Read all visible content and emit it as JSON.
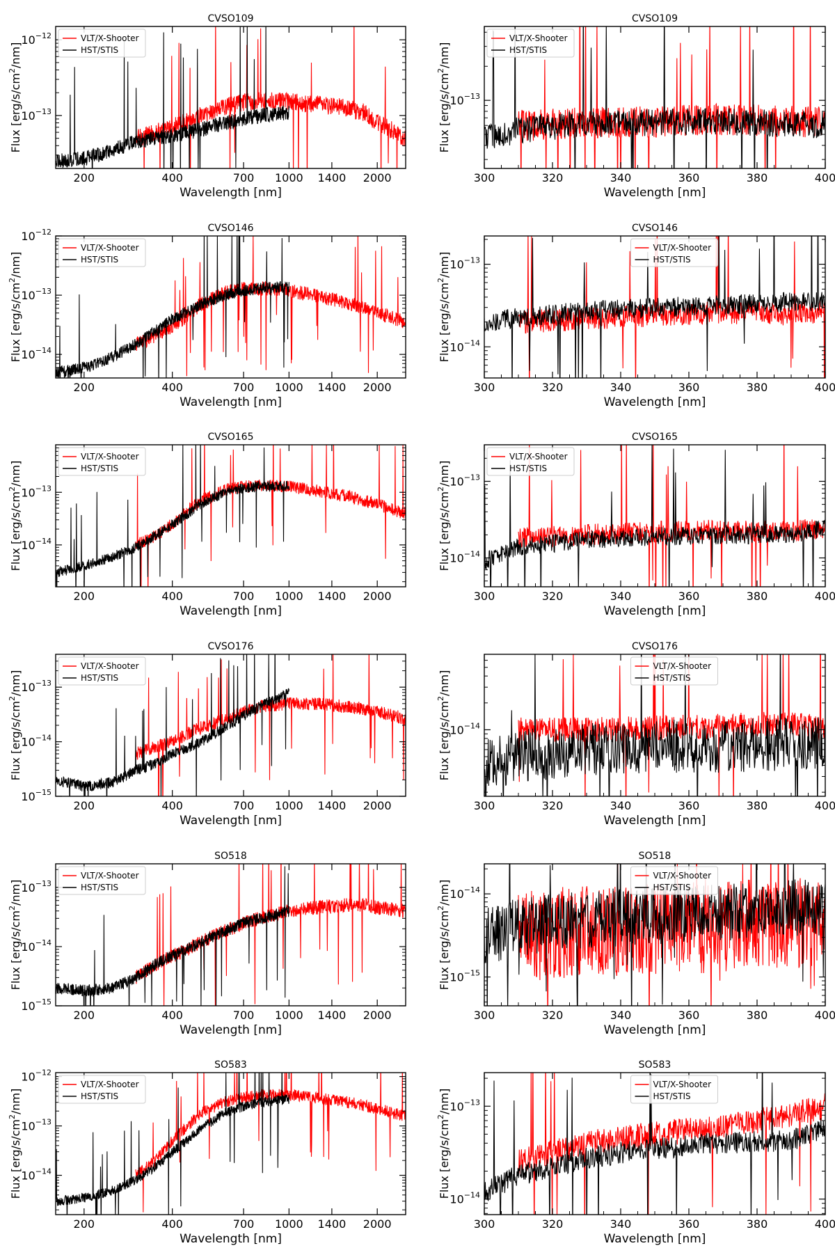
{
  "figure": {
    "legend": {
      "entries": [
        "VLT/X-Shooter",
        "HST/STIS"
      ],
      "colors": [
        "#ff0000",
        "#000000"
      ]
    },
    "xlabel": "Wavelength [nm]",
    "ylabel": "Flux [erg/s/cm2/nm]"
  },
  "chart_data": [
    {
      "type": "line",
      "title": "CVSO109",
      "xscale": "log",
      "yscale": "log",
      "xlim": [
        160,
        2500
      ],
      "ylim": [
        2e-14,
        1.5e-12
      ],
      "xticks": [
        200,
        400,
        700,
        1000,
        1400,
        2000
      ],
      "xticklabels": [
        "200",
        "400",
        "700",
        "1000",
        "1400",
        "2000"
      ],
      "ytick_exps": [
        -13,
        -12
      ],
      "legend_loc": "upper-left",
      "series": [
        {
          "name": "VLT/X-Shooter",
          "color": "#ff0000",
          "x": [
            300,
            350,
            400,
            500,
            600,
            700,
            800,
            1000,
            1200,
            1500,
            1800,
            2000,
            2300,
            2500
          ],
          "y": [
            5e-14,
            6e-14,
            7e-14,
            1e-13,
            1.3e-13,
            1.5e-13,
            1.6e-13,
            1.5e-13,
            1.4e-13,
            1.3e-13,
            1.1e-13,
            8e-14,
            6e-14,
            5e-14
          ]
        },
        {
          "name": "HST/STIS",
          "color": "#000000",
          "x": [
            160,
            200,
            250,
            300,
            350,
            400,
            500,
            600,
            700,
            800,
            1000
          ],
          "y": [
            2.5e-14,
            2.7e-14,
            3.5e-14,
            4.5e-14,
            5e-14,
            5.5e-14,
            6.5e-14,
            8e-14,
            9e-14,
            1e-13,
            1.1e-13
          ]
        }
      ]
    },
    {
      "type": "line",
      "title": "CVSO109",
      "xscale": "linear",
      "yscale": "log",
      "xlim": [
        300,
        400
      ],
      "ylim": [
        2.5e-14,
        4.5e-13
      ],
      "xticks": [
        300,
        320,
        340,
        360,
        380,
        400
      ],
      "xticklabels": [
        "300",
        "320",
        "340",
        "360",
        "380",
        "400"
      ],
      "ytick_exps": [
        -13
      ],
      "legend_loc": "upper-left",
      "series": [
        {
          "name": "VLT/X-Shooter",
          "color": "#ff0000",
          "x": [
            310,
            330,
            350,
            370,
            390,
            400
          ],
          "y": [
            6e-14,
            6.3e-14,
            6.5e-14,
            6.8e-14,
            6.5e-14,
            6.5e-14
          ]
        },
        {
          "name": "HST/STIS",
          "color": "#000000",
          "x": [
            300,
            310,
            330,
            350,
            370,
            390,
            400
          ],
          "y": [
            4.5e-14,
            5.5e-14,
            6.2e-14,
            6.4e-14,
            6.5e-14,
            6.2e-14,
            6e-14
          ]
        }
      ]
    },
    {
      "type": "line",
      "title": "CVSO146",
      "xscale": "log",
      "yscale": "log",
      "xlim": [
        160,
        2500
      ],
      "ylim": [
        4e-15,
        1e-12
      ],
      "xticks": [
        200,
        400,
        700,
        1000,
        1400,
        2000
      ],
      "xticklabels": [
        "200",
        "400",
        "700",
        "1000",
        "1400",
        "2000"
      ],
      "ytick_exps": [
        -14,
        -13,
        -12
      ],
      "legend_loc": "upper-left",
      "series": [
        {
          "name": "VLT/X-Shooter",
          "color": "#ff0000",
          "x": [
            300,
            350,
            400,
            450,
            500,
            600,
            700,
            800,
            1000,
            1200,
            1500,
            1800,
            2000,
            2300,
            2500
          ],
          "y": [
            1.5e-14,
            2e-14,
            3e-14,
            4.5e-14,
            7e-14,
            1.1e-13,
            1.3e-13,
            1.3e-13,
            1.2e-13,
            1e-13,
            8e-14,
            6e-14,
            5e-14,
            4e-14,
            3.5e-14
          ]
        },
        {
          "name": "HST/STIS",
          "color": "#000000",
          "x": [
            160,
            200,
            250,
            300,
            350,
            400,
            500,
            600,
            700,
            800,
            1000
          ],
          "y": [
            5e-15,
            6e-15,
            9e-15,
            1.5e-14,
            2.5e-14,
            4e-14,
            7e-14,
            1e-13,
            1.2e-13,
            1.3e-13,
            1.4e-13
          ]
        }
      ]
    },
    {
      "type": "line",
      "title": "CVSO146",
      "xscale": "linear",
      "yscale": "log",
      "xlim": [
        300,
        400
      ],
      "ylim": [
        4.2e-15,
        2.2e-13
      ],
      "xticks": [
        300,
        320,
        340,
        360,
        380,
        400
      ],
      "xticklabels": [
        "300",
        "320",
        "340",
        "360",
        "380",
        "400"
      ],
      "ytick_exps": [
        -14,
        -13
      ],
      "legend_loc": "upper-center",
      "series": [
        {
          "name": "VLT/X-Shooter",
          "color": "#ff0000",
          "x": [
            310,
            330,
            350,
            370,
            390,
            400
          ],
          "y": [
            2e-14,
            2.2e-14,
            2.4e-14,
            2.6e-14,
            2.5e-14,
            2.7e-14
          ]
        },
        {
          "name": "HST/STIS",
          "color": "#000000",
          "x": [
            300,
            310,
            330,
            350,
            370,
            390,
            400
          ],
          "y": [
            1.9e-14,
            2.3e-14,
            2.7e-14,
            3e-14,
            3.2e-14,
            3.5e-14,
            3.6e-14
          ]
        }
      ]
    },
    {
      "type": "line",
      "title": "CVSO165",
      "xscale": "log",
      "yscale": "log",
      "xlim": [
        160,
        2500
      ],
      "ylim": [
        1.6e-15,
        8e-13
      ],
      "xticks": [
        200,
        400,
        700,
        1000,
        1400,
        2000
      ],
      "xticklabels": [
        "200",
        "400",
        "700",
        "1000",
        "1400",
        "2000"
      ],
      "ytick_exps": [
        -14,
        -13
      ],
      "legend_loc": "upper-left",
      "series": [
        {
          "name": "VLT/X-Shooter",
          "color": "#ff0000",
          "x": [
            300,
            350,
            400,
            450,
            500,
            600,
            700,
            800,
            1000,
            1200,
            1500,
            1800,
            2000,
            2300,
            2500
          ],
          "y": [
            1e-14,
            1.5e-14,
            2.5e-14,
            4.5e-14,
            7e-14,
            1.1e-13,
            1.3e-13,
            1.35e-13,
            1.3e-13,
            1.1e-13,
            9e-14,
            7e-14,
            6e-14,
            4.5e-14,
            4e-14
          ]
        },
        {
          "name": "HST/STIS",
          "color": "#000000",
          "x": [
            160,
            200,
            250,
            300,
            350,
            400,
            500,
            600,
            700,
            800,
            1000
          ],
          "y": [
            3e-15,
            4e-15,
            6e-15,
            9e-15,
            1.5e-14,
            2.5e-14,
            6e-14,
            1e-13,
            1.2e-13,
            1.3e-13,
            1.3e-13
          ]
        }
      ]
    },
    {
      "type": "line",
      "title": "CVSO165",
      "xscale": "linear",
      "yscale": "log",
      "xlim": [
        300,
        400
      ],
      "ylim": [
        4.2e-15,
        3e-13
      ],
      "xticks": [
        300,
        320,
        340,
        360,
        380,
        400
      ],
      "xticklabels": [
        "300",
        "320",
        "340",
        "360",
        "380",
        "400"
      ],
      "ytick_exps": [
        -14,
        -13
      ],
      "legend_loc": "upper-left",
      "series": [
        {
          "name": "VLT/X-Shooter",
          "color": "#ff0000",
          "x": [
            310,
            330,
            350,
            370,
            390,
            400
          ],
          "y": [
            1.8e-14,
            2e-14,
            2.2e-14,
            2.3e-14,
            2.2e-14,
            2.5e-14
          ]
        },
        {
          "name": "HST/STIS",
          "color": "#000000",
          "x": [
            300,
            310,
            330,
            350,
            370,
            390,
            400
          ],
          "y": [
            9e-15,
            1.4e-14,
            1.7e-14,
            1.9e-14,
            2e-14,
            2e-14,
            2.5e-14
          ]
        }
      ]
    },
    {
      "type": "line",
      "title": "CVSO176",
      "xscale": "log",
      "yscale": "log",
      "xlim": [
        160,
        2500
      ],
      "ylim": [
        1e-15,
        4e-13
      ],
      "xticks": [
        200,
        400,
        700,
        1000,
        1400,
        2000
      ],
      "xticklabels": [
        "200",
        "400",
        "700",
        "1000",
        "1400",
        "2000"
      ],
      "ytick_exps": [
        -15,
        -14,
        -13
      ],
      "legend_loc": "upper-left",
      "series": [
        {
          "name": "VLT/X-Shooter",
          "color": "#ff0000",
          "x": [
            300,
            350,
            400,
            450,
            500,
            600,
            700,
            800,
            1000,
            1200,
            1500,
            1800,
            2000,
            2300,
            2500
          ],
          "y": [
            6e-15,
            8e-15,
            1e-14,
            1.4e-14,
            1.8e-14,
            2.5e-14,
            3.5e-14,
            4.5e-14,
            5e-14,
            5e-14,
            4.5e-14,
            4e-14,
            3.5e-14,
            3e-14,
            2.5e-14
          ]
        },
        {
          "name": "HST/STIS",
          "color": "#000000",
          "x": [
            160,
            200,
            250,
            300,
            350,
            400,
            500,
            600,
            700,
            800,
            1000
          ],
          "y": [
            2e-15,
            1.5e-15,
            1.8e-15,
            3e-15,
            4e-15,
            6e-15,
            1e-14,
            1.8e-14,
            3e-14,
            4.5e-14,
            8e-14
          ]
        }
      ]
    },
    {
      "type": "line",
      "title": "CVSO176",
      "xscale": "linear",
      "yscale": "log",
      "xlim": [
        300,
        400
      ],
      "ylim": [
        1.8e-15,
        7e-14
      ],
      "xticks": [
        300,
        320,
        340,
        360,
        380,
        400
      ],
      "xticklabels": [
        "300",
        "320",
        "340",
        "360",
        "380",
        "400"
      ],
      "ytick_exps": [
        -14
      ],
      "legend_loc": "upper-center",
      "series": [
        {
          "name": "VLT/X-Shooter",
          "color": "#ff0000",
          "x": [
            310,
            330,
            350,
            370,
            390,
            400
          ],
          "y": [
            1e-14,
            1e-14,
            1.05e-14,
            1.1e-14,
            1.2e-14,
            1e-14
          ]
        },
        {
          "name": "HST/STIS",
          "color": "#000000",
          "x": [
            300,
            310,
            330,
            350,
            370,
            390,
            400
          ],
          "y": [
            4e-15,
            5e-15,
            6e-15,
            6.5e-15,
            6.5e-15,
            7e-15,
            7e-15
          ]
        }
      ]
    },
    {
      "type": "line",
      "title": "SO518",
      "xscale": "log",
      "yscale": "log",
      "xlim": [
        160,
        2500
      ],
      "ylim": [
        1e-15,
        2.5e-13
      ],
      "xticks": [
        200,
        400,
        700,
        1000,
        1400,
        2000
      ],
      "xticklabels": [
        "200",
        "400",
        "700",
        "1000",
        "1400",
        "2000"
      ],
      "ytick_exps": [
        -15,
        -14,
        -13
      ],
      "legend_loc": "upper-left",
      "series": [
        {
          "name": "VLT/X-Shooter",
          "color": "#ff0000",
          "x": [
            300,
            350,
            400,
            450,
            500,
            600,
            700,
            800,
            1000,
            1200,
            1500,
            1800,
            2000,
            2300,
            2500
          ],
          "y": [
            3e-15,
            5e-15,
            7e-15,
            9e-15,
            1.2e-14,
            1.8e-14,
            2.5e-14,
            3e-14,
            4e-14,
            4.5e-14,
            5e-14,
            5e-14,
            4.5e-14,
            4.2e-14,
            4e-14
          ]
        },
        {
          "name": "HST/STIS",
          "color": "#000000",
          "x": [
            160,
            200,
            250,
            300,
            350,
            400,
            500,
            600,
            700,
            800,
            1000
          ],
          "y": [
            2e-15,
            1.8e-15,
            2e-15,
            3e-15,
            5e-15,
            7e-15,
            1.2e-14,
            1.8e-14,
            2.5e-14,
            3e-14,
            4e-14
          ]
        }
      ]
    },
    {
      "type": "line",
      "title": "SO518",
      "xscale": "linear",
      "yscale": "log",
      "xlim": [
        300,
        400
      ],
      "ylim": [
        4.5e-16,
        2.3e-14
      ],
      "xticks": [
        300,
        320,
        340,
        360,
        380,
        400
      ],
      "xticklabels": [
        "300",
        "320",
        "340",
        "360",
        "380",
        "400"
      ],
      "ytick_exps": [
        -15,
        -14
      ],
      "legend_loc": "upper-center",
      "series": [
        {
          "name": "VLT/X-Shooter",
          "color": "#ff0000",
          "x": [
            310,
            330,
            350,
            370,
            390,
            400
          ],
          "y": [
            3e-15,
            3.5e-15,
            3.8e-15,
            4e-15,
            4.5e-15,
            4.5e-15
          ]
        },
        {
          "name": "HST/STIS",
          "color": "#000000",
          "x": [
            300,
            310,
            330,
            350,
            370,
            390,
            400
          ],
          "y": [
            3e-15,
            4e-15,
            5e-15,
            5.5e-15,
            6e-15,
            7e-15,
            7e-15
          ]
        }
      ]
    },
    {
      "type": "line",
      "title": "SO583",
      "xscale": "log",
      "yscale": "log",
      "xlim": [
        160,
        2500
      ],
      "ylim": [
        1.6e-15,
        1.2e-12
      ],
      "xticks": [
        200,
        400,
        700,
        1000,
        1400,
        2000
      ],
      "xticklabels": [
        "200",
        "400",
        "700",
        "1000",
        "1400",
        "2000"
      ],
      "ytick_exps": [
        -14,
        -13,
        -12
      ],
      "legend_loc": "upper-left",
      "series": [
        {
          "name": "VLT/X-Shooter",
          "color": "#ff0000",
          "x": [
            300,
            350,
            400,
            450,
            500,
            600,
            700,
            800,
            1000,
            1200,
            1500,
            1800,
            2000,
            2300,
            2500
          ],
          "y": [
            1e-14,
            2e-14,
            5e-14,
            1e-13,
            1.8e-13,
            3e-13,
            3.8e-13,
            4.2e-13,
            4.2e-13,
            3.8e-13,
            3.2e-13,
            2.6e-13,
            2.2e-13,
            1.8e-13,
            1.6e-13
          ]
        },
        {
          "name": "HST/STIS",
          "color": "#000000",
          "x": [
            160,
            200,
            250,
            300,
            350,
            400,
            500,
            600,
            700,
            800,
            1000
          ],
          "y": [
            3e-15,
            3.5e-15,
            5e-15,
            8e-15,
            1.5e-14,
            3e-14,
            9e-14,
            1.8e-13,
            2.5e-13,
            3e-13,
            3.5e-13
          ]
        }
      ]
    },
    {
      "type": "line",
      "title": "SO583",
      "xscale": "linear",
      "yscale": "log",
      "xlim": [
        300,
        400
      ],
      "ylim": [
        6.8e-15,
        2.3e-13
      ],
      "xticks": [
        300,
        320,
        340,
        360,
        380,
        400
      ],
      "xticklabels": [
        "300",
        "320",
        "340",
        "360",
        "380",
        "400"
      ],
      "ytick_exps": [
        -14,
        -13
      ],
      "legend_loc": "upper-center",
      "series": [
        {
          "name": "VLT/X-Shooter",
          "color": "#ff0000",
          "x": [
            310,
            330,
            350,
            370,
            390,
            400
          ],
          "y": [
            2.5e-14,
            4e-14,
            5e-14,
            6e-14,
            8e-14,
            1e-13
          ]
        },
        {
          "name": "HST/STIS",
          "color": "#000000",
          "x": [
            300,
            310,
            330,
            350,
            370,
            390,
            400
          ],
          "y": [
            1.2e-14,
            1.8e-14,
            2.8e-14,
            3.5e-14,
            4e-14,
            4.2e-14,
            6e-14
          ]
        }
      ]
    }
  ]
}
